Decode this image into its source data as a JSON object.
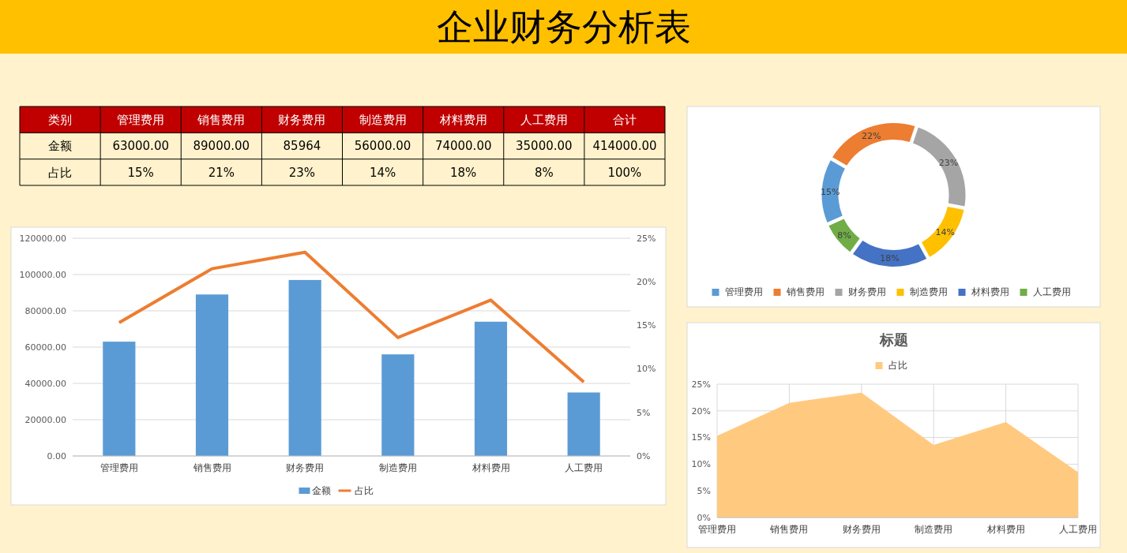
{
  "chart_data": [
    {
      "type": "other",
      "title": "企业财务分析表",
      "xlabel": "类别",
      "categories": [
        "管理费用",
        "销售费用",
        "财务费用",
        "制造费用",
        "材料费用",
        "人工费用",
        "合计"
      ],
      "series": [
        {
          "name": "金额",
          "values": [
            63000,
            89000,
            85964,
            56000,
            74000,
            35000,
            414000
          ],
          "value_labels": [
            "63000.00",
            "89000.00",
            "85964",
            "56000.00",
            "74000.00",
            "35000.00",
            "414000.00"
          ]
        },
        {
          "name": "占比",
          "values": [
            15,
            21,
            23,
            14,
            18,
            8,
            100
          ],
          "value_labels": [
            "15%",
            "21%",
            "23%",
            "14%",
            "18%",
            "8%",
            "100%"
          ]
        }
      ]
    },
    {
      "type": "bar",
      "categories": [
        "管理费用",
        "销售费用",
        "财务费用",
        "制造费用",
        "材料费用",
        "人工费用"
      ],
      "series": [
        {
          "name": "金额",
          "type": "bar",
          "color": "#5b9bd5",
          "values": [
            63000,
            89000,
            97000,
            56000,
            74000,
            35000
          ]
        },
        {
          "name": "占比",
          "type": "line",
          "axis": "y2",
          "color": "#ed7d31",
          "values": [
            15.3,
            21.5,
            23.4,
            13.6,
            17.9,
            8.5
          ]
        }
      ],
      "ylim": [
        0,
        120000
      ],
      "yticks": [
        {
          "value": 0,
          "label": "0.00"
        },
        {
          "value": 20000,
          "label": "20000.00"
        },
        {
          "value": 40000,
          "label": "40000.00"
        },
        {
          "value": 60000,
          "label": "60000.00"
        },
        {
          "value": 80000,
          "label": "80000.00"
        },
        {
          "value": 100000,
          "label": "100000.00"
        },
        {
          "value": 120000,
          "label": "120000.00"
        }
      ],
      "y2lim": [
        0,
        25
      ],
      "y2ticks": [
        {
          "value": 0,
          "label": "0%"
        },
        {
          "value": 5,
          "label": "5%"
        },
        {
          "value": 10,
          "label": "10%"
        },
        {
          "value": 15,
          "label": "15%"
        },
        {
          "value": 20,
          "label": "20%"
        },
        {
          "value": 25,
          "label": "25%"
        }
      ],
      "grid": "y",
      "legend": "bottom",
      "marker": "none"
    },
    {
      "type": "donut",
      "categories": [
        "管理费用",
        "销售费用",
        "财务费用",
        "制造费用",
        "材料费用",
        "人工费用"
      ],
      "values": [
        15,
        22,
        23,
        14,
        18,
        8
      ],
      "colors": [
        "#5b9bd5",
        "#ed7d31",
        "#a5a5a5",
        "#ffc000",
        "#4472c4",
        "#70ad47"
      ],
      "value_labels": [
        "15%",
        "22%",
        "23%",
        "14%",
        "18%",
        "8%"
      ],
      "legend": "bottom"
    },
    {
      "type": "area",
      "title": "标题",
      "categories": [
        "管理费用",
        "销售费用",
        "财务费用",
        "制造费用",
        "材料费用",
        "人工费用"
      ],
      "series": [
        {
          "name": "占比",
          "color": "#ffca80",
          "values": [
            15.3,
            21.5,
            23.4,
            13.6,
            17.9,
            8.5
          ]
        }
      ],
      "ylim": [
        0,
        25
      ],
      "yticks": [
        {
          "value": 0,
          "label": "0%"
        },
        {
          "value": 5,
          "label": "5%"
        },
        {
          "value": 10,
          "label": "10%"
        },
        {
          "value": 15,
          "label": "15%"
        },
        {
          "value": 20,
          "label": "20%"
        },
        {
          "value": 25,
          "label": "25%"
        }
      ],
      "grid": true,
      "legend": "top"
    }
  ]
}
